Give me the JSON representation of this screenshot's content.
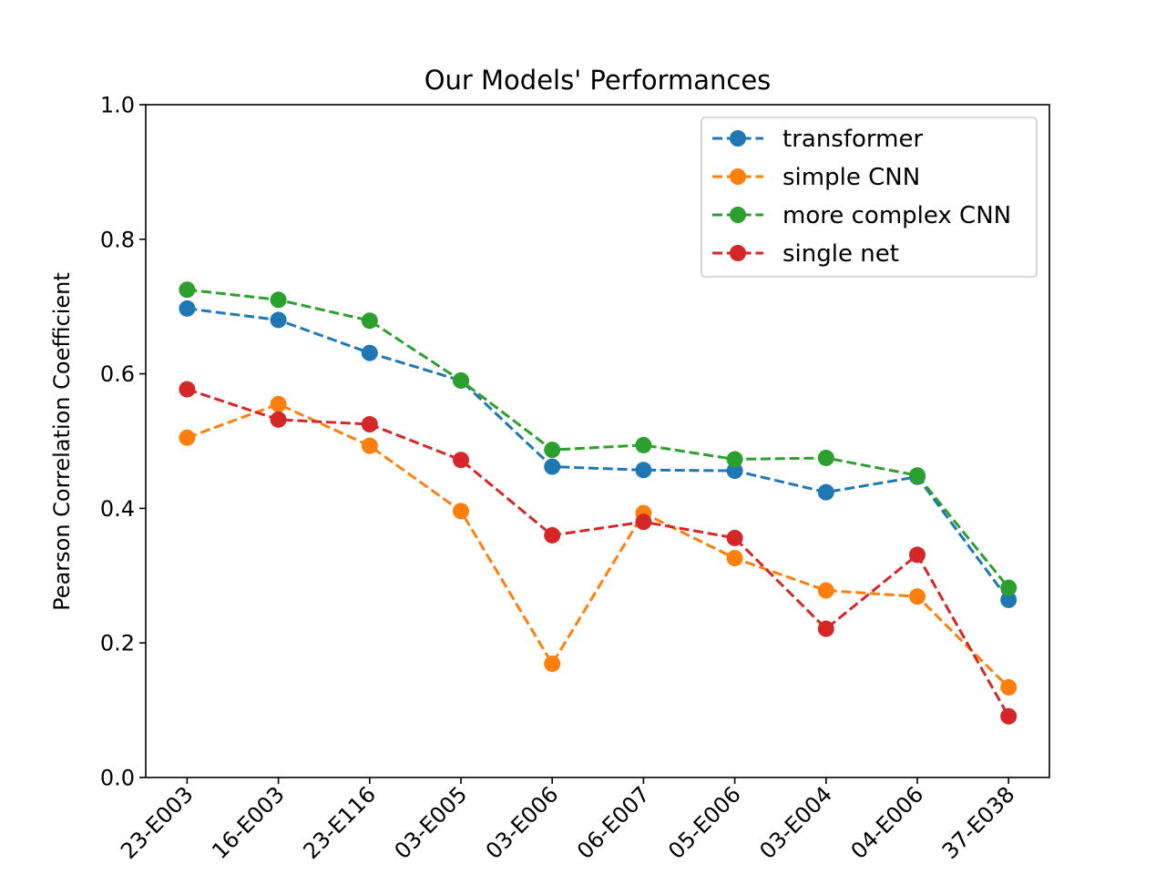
{
  "chart_data": {
    "type": "line",
    "title": "Our Models' Performances",
    "xlabel": "",
    "ylabel": "Pearson Correlation Coefficient",
    "ylim": [
      0,
      1.0
    ],
    "yticks": [
      "0.0",
      "0.2",
      "0.4",
      "0.6",
      "0.8",
      "1.0"
    ],
    "categories": [
      "23-E003",
      "16-E003",
      "23-E116",
      "03-E005",
      "03-E006",
      "06-E007",
      "05-E006",
      "03-E004",
      "04-E006",
      "37-E038"
    ],
    "grid": false,
    "legend_position": "top-right",
    "series": [
      {
        "name": "transformer",
        "color": "#1f77b4",
        "values": [
          0.697,
          0.68,
          0.631,
          0.59,
          0.462,
          0.457,
          0.456,
          0.424,
          0.447,
          0.264
        ]
      },
      {
        "name": "simple CNN",
        "color": "#ff7f0e",
        "values": [
          0.505,
          0.555,
          0.493,
          0.396,
          0.169,
          0.393,
          0.326,
          0.278,
          0.269,
          0.134
        ]
      },
      {
        "name": "more complex CNN",
        "color": "#2ca02c",
        "values": [
          0.725,
          0.71,
          0.679,
          0.59,
          0.487,
          0.494,
          0.473,
          0.475,
          0.449,
          0.282
        ]
      },
      {
        "name": "single net",
        "color": "#d62728",
        "values": [
          0.577,
          0.532,
          0.525,
          0.472,
          0.36,
          0.38,
          0.356,
          0.221,
          0.331,
          0.091
        ]
      }
    ]
  }
}
